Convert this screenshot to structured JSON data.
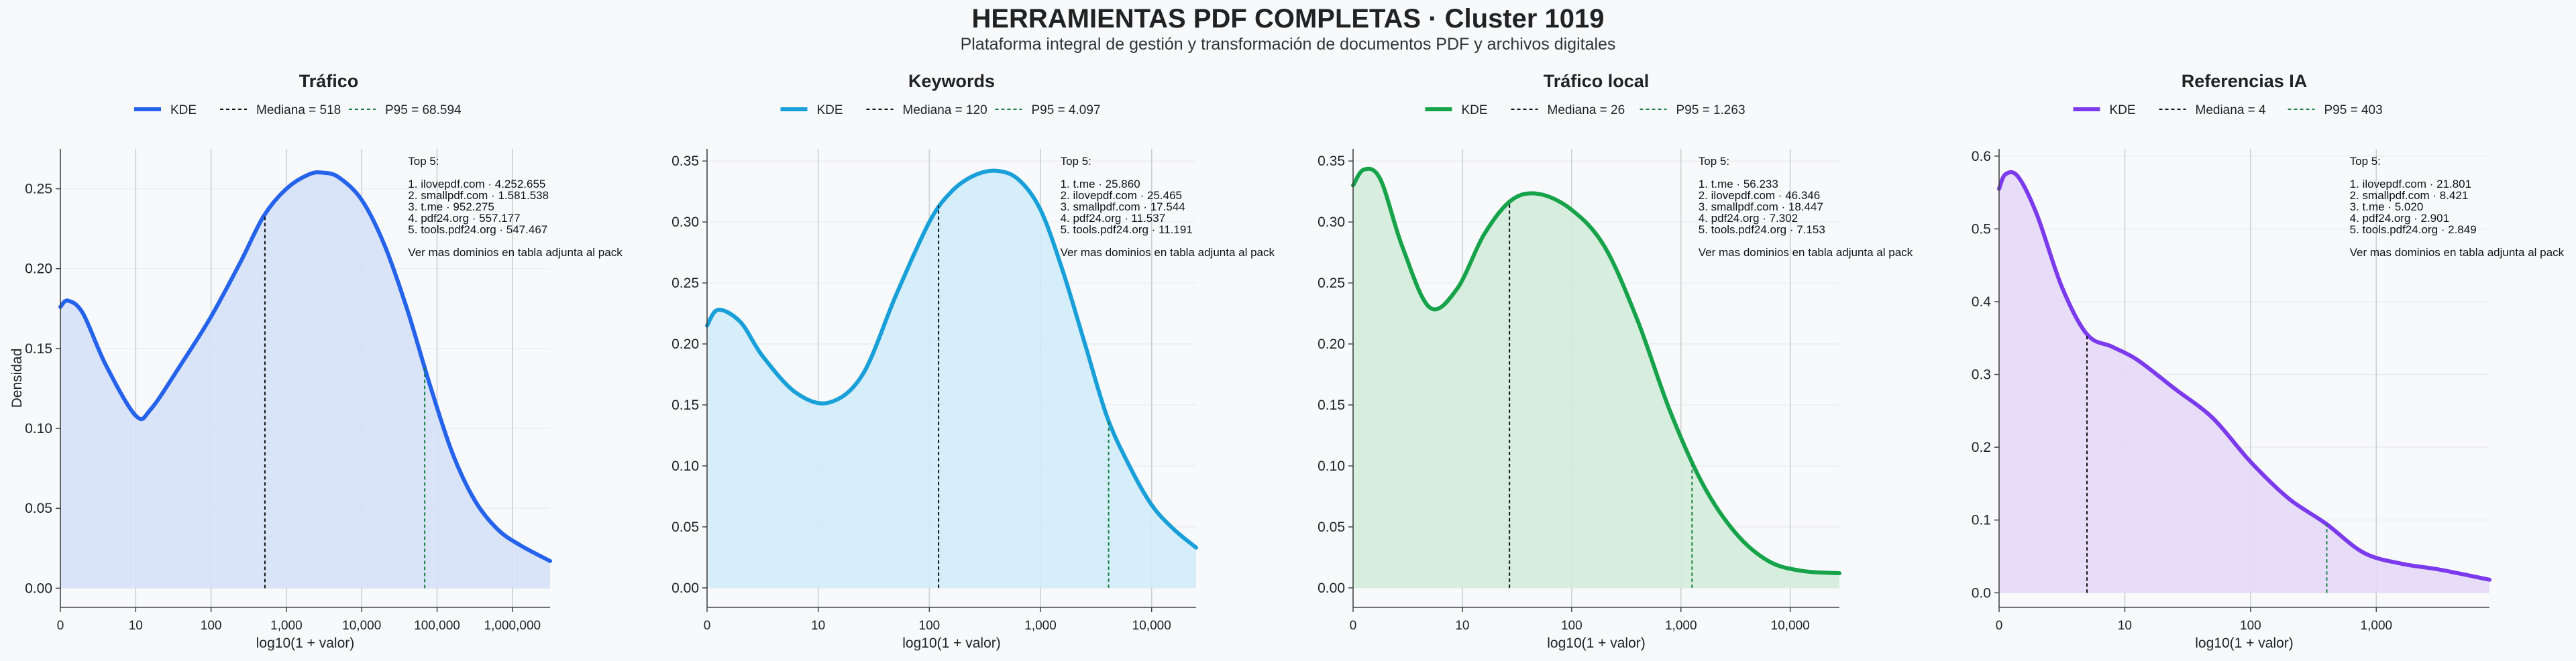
{
  "title": "HERRAMIENTAS PDF COMPLETAS · Cluster 1019",
  "subtitle": "Plataforma integral de gestión y transformación de documentos PDF y archivos digitales",
  "chart_data": [
    {
      "type": "area",
      "title": "Tráfico",
      "xlabel": "log10(1 + valor)",
      "ylabel": "Densidad",
      "color": "#2563eb",
      "fill": "#d6e1f8",
      "xlim": [
        0,
        6.5
      ],
      "ylim": [
        -0.012,
        0.275
      ],
      "xticks": [
        0,
        1,
        2,
        3,
        4,
        5,
        6
      ],
      "xtick_labels": [
        "0",
        "10",
        "100",
        "1,000",
        "10,000",
        "100,000",
        "1,000,000"
      ],
      "yticks": [
        0,
        0.05,
        0.1,
        0.15,
        0.2,
        0.25
      ],
      "ytick_labels": [
        "0.00",
        "0.05",
        "0.10",
        "0.15",
        "0.20",
        "0.25"
      ],
      "legend": {
        "kde": "KDE",
        "median": "Mediana = 518",
        "p95": "P95 = 68.594"
      },
      "median_x": 2.715,
      "p95_x": 4.836,
      "x": [
        0,
        0.1,
        0.3,
        0.6,
        1.0,
        1.2,
        1.6,
        2.0,
        2.4,
        2.7,
        3.0,
        3.3,
        3.5,
        3.7,
        4.0,
        4.3,
        4.6,
        4.9,
        5.2,
        5.5,
        5.8,
        6.1,
        6.5
      ],
      "y": [
        0.176,
        0.18,
        0.172,
        0.14,
        0.108,
        0.112,
        0.14,
        0.17,
        0.205,
        0.233,
        0.25,
        0.259,
        0.26,
        0.257,
        0.243,
        0.215,
        0.175,
        0.128,
        0.085,
        0.055,
        0.037,
        0.027,
        0.017
      ],
      "annotation": [
        "Top 5:",
        "",
        "1. ilovepdf.com · 4.252.655",
        "2. smallpdf.com · 1.581.538",
        "3. t.me · 952.275",
        "4. pdf24.org · 557.177",
        "5. tools.pdf24.org · 547.467",
        "",
        "Ver mas dominios en tabla adjunta al pack"
      ]
    },
    {
      "type": "area",
      "title": "Keywords",
      "xlabel": "log10(1 + valor)",
      "ylabel": "",
      "color": "#19a0d9",
      "fill": "#d2ecf9",
      "xlim": [
        0,
        4.4
      ],
      "ylim": [
        -0.016,
        0.36
      ],
      "xticks": [
        0,
        1,
        2,
        3,
        4
      ],
      "xtick_labels": [
        "0",
        "10",
        "100",
        "1,000",
        "10,000"
      ],
      "yticks": [
        0,
        0.05,
        0.1,
        0.15,
        0.2,
        0.25,
        0.3,
        0.35
      ],
      "ytick_labels": [
        "0.00",
        "0.05",
        "0.10",
        "0.15",
        "0.20",
        "0.25",
        "0.30",
        "0.35"
      ],
      "legend": {
        "kde": "KDE",
        "median": "Mediana = 120",
        "p95": "P95 = 4.097"
      },
      "median_x": 2.083,
      "p95_x": 3.613,
      "x": [
        0,
        0.1,
        0.3,
        0.5,
        0.8,
        1.1,
        1.4,
        1.7,
        2.0,
        2.2,
        2.4,
        2.6,
        2.8,
        3.0,
        3.2,
        3.4,
        3.6,
        3.8,
        4.0,
        4.2,
        4.4
      ],
      "y": [
        0.215,
        0.228,
        0.218,
        0.19,
        0.16,
        0.152,
        0.175,
        0.24,
        0.3,
        0.325,
        0.338,
        0.342,
        0.335,
        0.31,
        0.26,
        0.2,
        0.14,
        0.1,
        0.068,
        0.048,
        0.033
      ],
      "annotation": [
        "Top 5:",
        "",
        "1. t.me · 25.860",
        "2. ilovepdf.com · 25.465",
        "3. smallpdf.com · 17.544",
        "4. pdf24.org · 11.537",
        "5. tools.pdf24.org · 11.191",
        "",
        "Ver mas dominios en tabla adjunta al pack"
      ]
    },
    {
      "type": "area",
      "title": "Tráfico local",
      "xlabel": "log10(1 + valor)",
      "ylabel": "",
      "color": "#16a34a",
      "fill": "#d3ecdb",
      "xlim": [
        0,
        4.45
      ],
      "ylim": [
        -0.016,
        0.36
      ],
      "xticks": [
        0,
        1,
        2,
        3,
        4
      ],
      "xtick_labels": [
        "0",
        "10",
        "100",
        "1,000",
        "10,000"
      ],
      "yticks": [
        0,
        0.05,
        0.1,
        0.15,
        0.2,
        0.25,
        0.3,
        0.35
      ],
      "ytick_labels": [
        "0.00",
        "0.05",
        "0.10",
        "0.15",
        "0.20",
        "0.25",
        "0.30",
        "0.35"
      ],
      "legend": {
        "kde": "KDE",
        "median": "Mediana = 26",
        "p95": "P95 = 1.263"
      },
      "median_x": 1.431,
      "p95_x": 3.102,
      "x": [
        0,
        0.1,
        0.25,
        0.45,
        0.7,
        0.95,
        1.2,
        1.45,
        1.7,
        2.0,
        2.3,
        2.6,
        2.9,
        3.2,
        3.5,
        3.8,
        4.1,
        4.45
      ],
      "y": [
        0.33,
        0.343,
        0.335,
        0.28,
        0.23,
        0.245,
        0.29,
        0.318,
        0.323,
        0.31,
        0.28,
        0.22,
        0.145,
        0.085,
        0.045,
        0.022,
        0.014,
        0.012
      ],
      "annotation": [
        "Top 5:",
        "",
        "1. t.me · 56.233",
        "2. ilovepdf.com · 46.346",
        "3. smallpdf.com · 18.447",
        "4. pdf24.org · 7.302",
        "5. tools.pdf24.org · 7.153",
        "",
        "Ver mas dominios en tabla adjunta al pack"
      ]
    },
    {
      "type": "area",
      "title": "Referencias IA",
      "xlabel": "log10(1 + valor)",
      "ylabel": "",
      "color": "#7c3aed",
      "fill": "#e4d9f8",
      "xlim": [
        0,
        3.9
      ],
      "ylim": [
        -0.02,
        0.61
      ],
      "xticks": [
        0,
        1,
        2,
        3
      ],
      "xtick_labels": [
        "0",
        "10",
        "100",
        "1,000"
      ],
      "yticks": [
        0,
        0.1,
        0.2,
        0.3,
        0.4,
        0.5,
        0.6
      ],
      "ytick_labels": [
        "0.0",
        "0.1",
        "0.2",
        "0.3",
        "0.4",
        "0.5",
        "0.6"
      ],
      "legend": {
        "kde": "KDE",
        "median": "Mediana = 4",
        "p95": "P95 = 403"
      },
      "median_x": 0.699,
      "p95_x": 2.606,
      "x": [
        0,
        0.05,
        0.15,
        0.3,
        0.5,
        0.7,
        0.9,
        1.1,
        1.4,
        1.7,
        2.0,
        2.3,
        2.6,
        2.9,
        3.2,
        3.5,
        3.9
      ],
      "y": [
        0.555,
        0.575,
        0.572,
        0.52,
        0.42,
        0.355,
        0.338,
        0.32,
        0.28,
        0.24,
        0.18,
        0.13,
        0.095,
        0.055,
        0.04,
        0.032,
        0.018
      ],
      "annotation": [
        "Top 5:",
        "",
        "1. ilovepdf.com · 21.801",
        "2. smallpdf.com · 8.421",
        "3. t.me · 5.020",
        "4. pdf24.org · 2.901",
        "5. tools.pdf24.org · 2.849",
        "",
        "Ver mas dominios en tabla adjunta al pack"
      ]
    }
  ]
}
